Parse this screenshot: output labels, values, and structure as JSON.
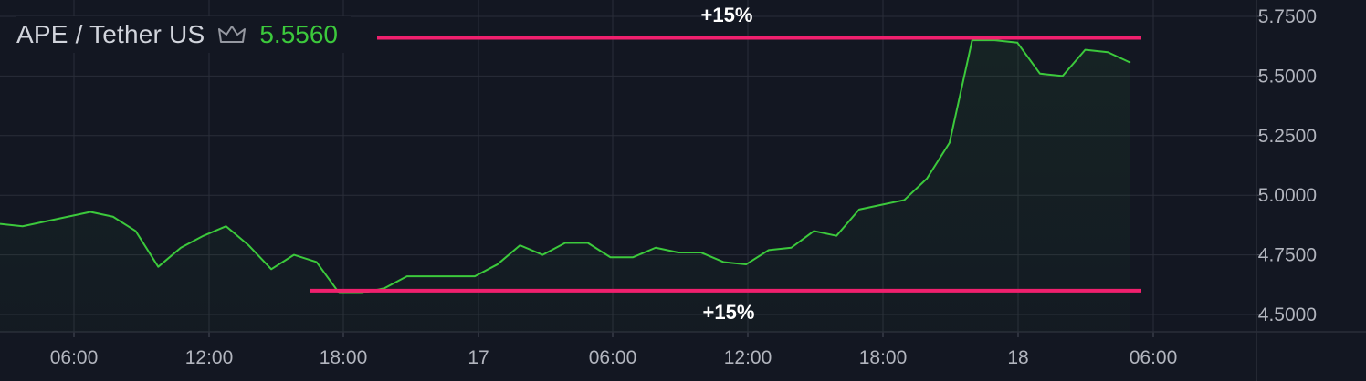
{
  "legend": {
    "pair": "APE / Tether US",
    "price": "5.5560",
    "icon": "crown-icon"
  },
  "colors": {
    "background": "#131722",
    "grid": "#2a2e39",
    "line": "#3cc93c",
    "annotation_line": "#f0206e",
    "price_text": "#3cc93c"
  },
  "chart_data": {
    "type": "area",
    "x_tick_labels": [
      "06:00",
      "12:00",
      "18:00",
      "17",
      "06:00",
      "12:00",
      "18:00",
      "18",
      "06:00"
    ],
    "y_tick_labels": [
      "4.5000",
      "4.7500",
      "5.0000",
      "5.2500",
      "5.5000",
      "5.7500"
    ],
    "ylim": [
      4.47,
      5.78
    ],
    "grid": true,
    "series": [
      {
        "values": [
          4.88,
          4.87,
          4.89,
          4.91,
          4.93,
          4.91,
          4.85,
          4.7,
          4.78,
          4.83,
          4.87,
          4.79,
          4.69,
          4.75,
          4.72,
          4.59,
          4.59,
          4.61,
          4.66,
          4.66,
          4.66,
          4.66,
          4.71,
          4.79,
          4.75,
          4.8,
          4.8,
          4.74,
          4.74,
          4.78,
          4.76,
          4.76,
          4.72,
          4.71,
          4.77,
          4.78,
          4.85,
          4.83,
          4.94,
          4.96,
          4.98,
          5.07,
          5.22,
          5.65,
          5.65,
          5.64,
          5.51,
          5.5,
          5.61,
          5.6,
          5.556
        ]
      }
    ],
    "annotations": [
      {
        "label": "+15%",
        "level": 5.66
      },
      {
        "label": "+15%",
        "level": 4.6
      }
    ]
  }
}
